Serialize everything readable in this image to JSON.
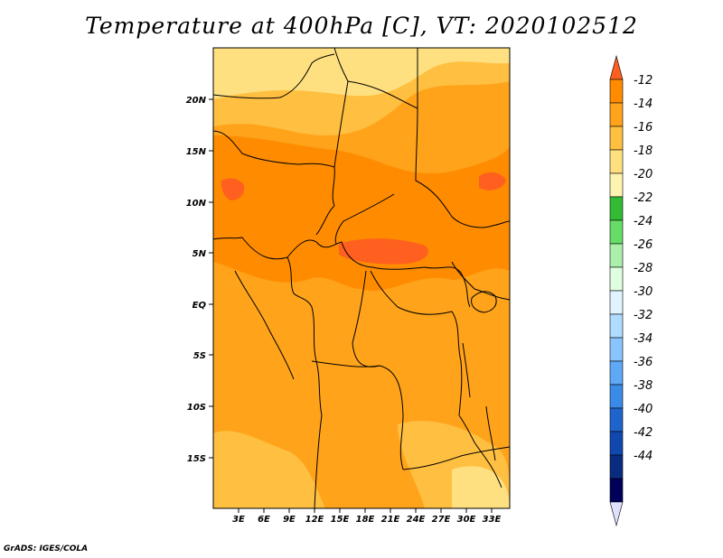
{
  "title": "Temperature at 400hPa [C], VT: 2020102512",
  "credit": "GrADS: IGES/COLA",
  "map": {
    "lat_ticks": [
      "20N",
      "15N",
      "10N",
      "5N",
      "EQ",
      "5S",
      "10S",
      "15S"
    ],
    "lon_ticks": [
      "3E",
      "6E",
      "9E",
      "12E",
      "15E",
      "18E",
      "21E",
      "24E",
      "27E",
      "30E",
      "33E"
    ],
    "lon_range": [
      0,
      35
    ],
    "lat_range": [
      -20,
      24
    ]
  },
  "colorbar": {
    "labels": [
      "-12",
      "-14",
      "-16",
      "-18",
      "-20",
      "-22",
      "-24",
      "-26",
      "-28",
      "-30",
      "-32",
      "-34",
      "-36",
      "-38",
      "-40",
      "-42",
      "-44"
    ],
    "colors": [
      "#ff5f1f",
      "#ff8c00",
      "#ffa31a",
      "#ffbf40",
      "#ffe080",
      "#fff3b0",
      "#33bb33",
      "#66dd66",
      "#aaf0aa",
      "#e0ffe0",
      "#e0f4ff",
      "#b0dcff",
      "#8ac4ff",
      "#5ea8f5",
      "#3a8ae8",
      "#1e64cc",
      "#1048b0",
      "#0a2c80",
      "#00005a"
    ],
    "low_end_color": "#e0e0ff"
  }
}
